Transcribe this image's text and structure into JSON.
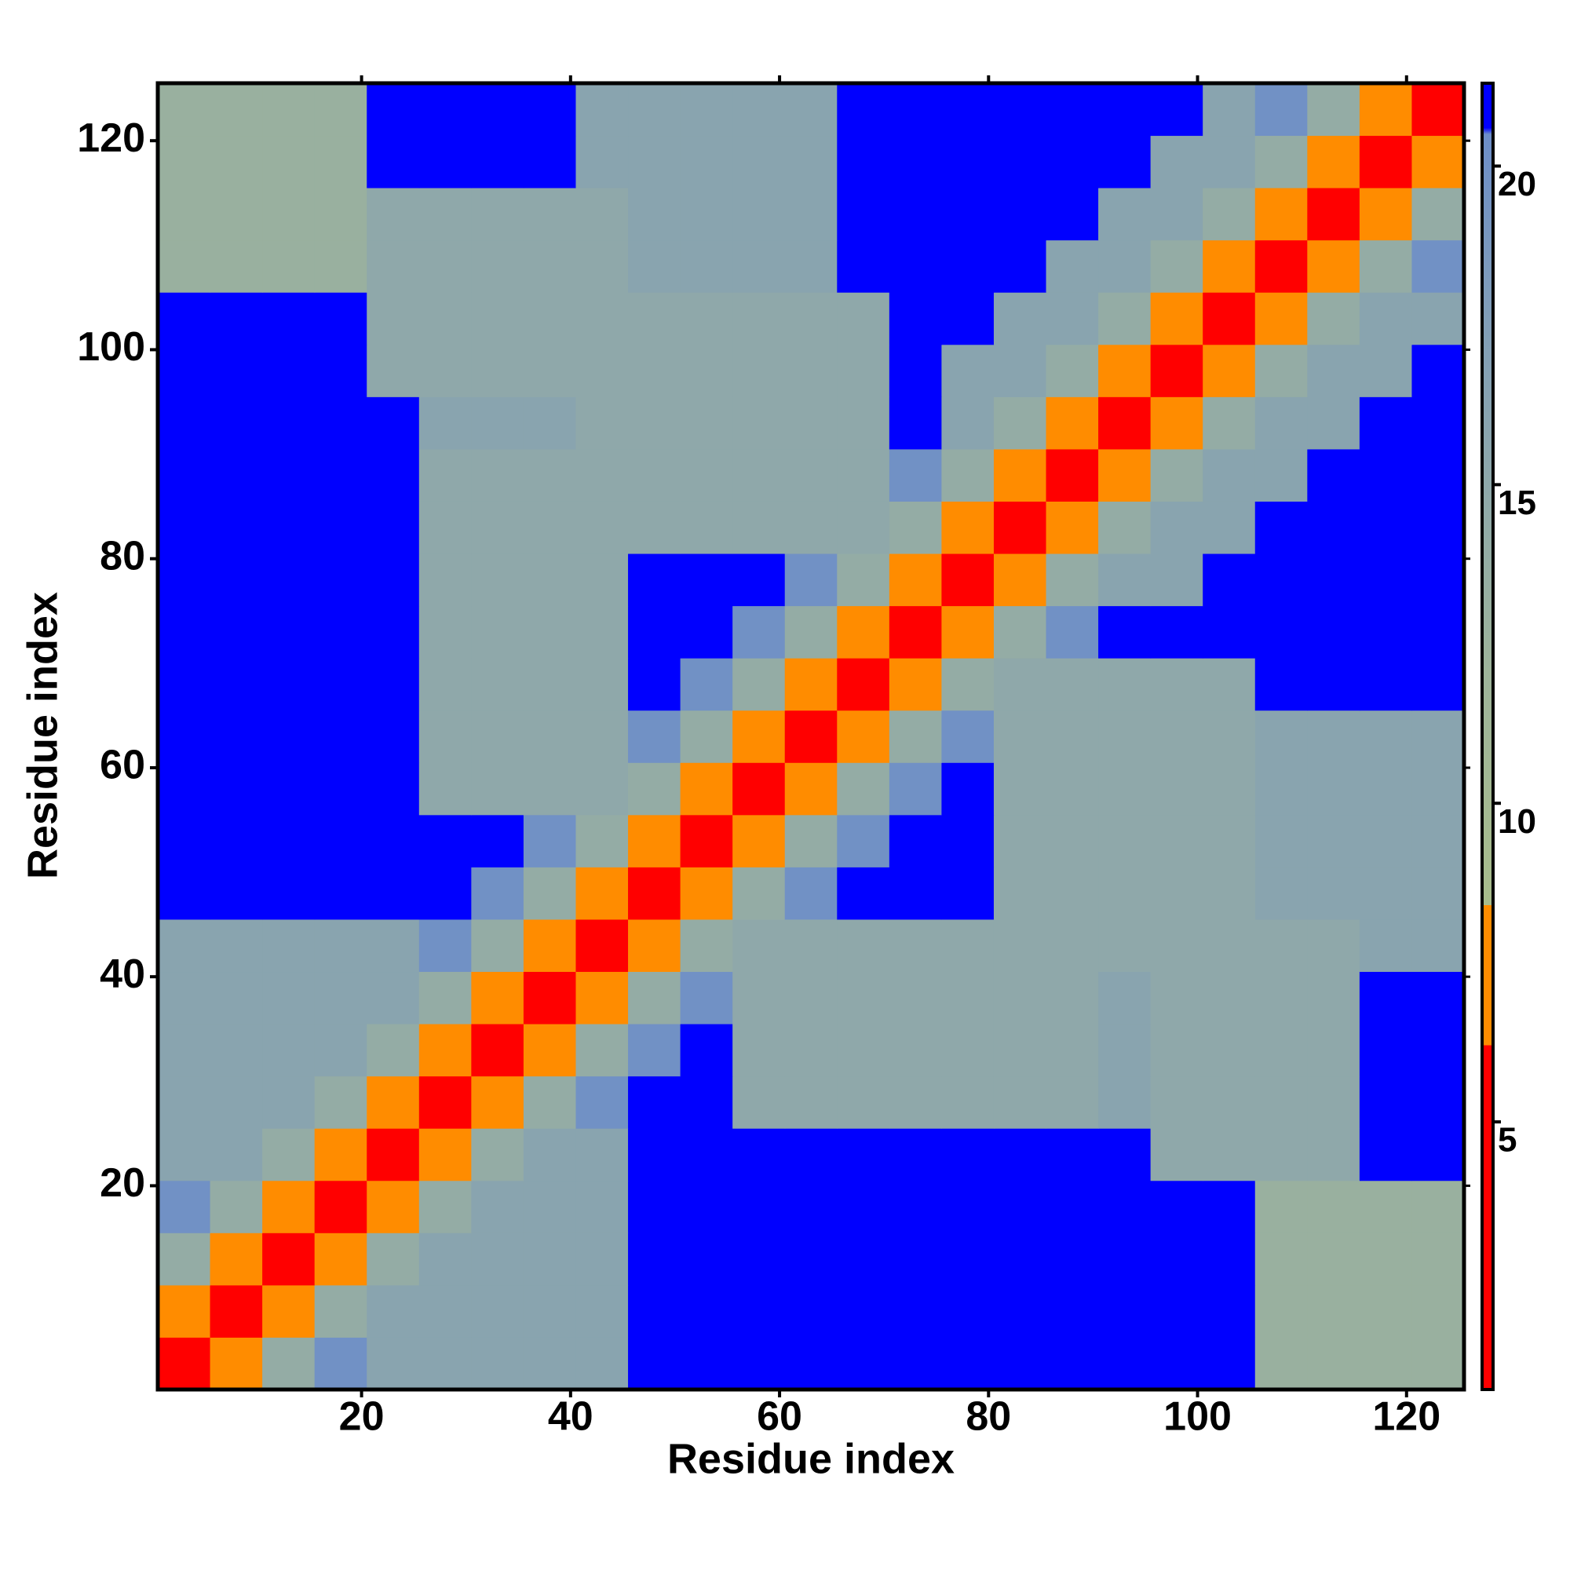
{
  "chart_data": {
    "type": "heatmap",
    "xlabel": "Residue index",
    "ylabel": "Residue index",
    "xlim": [
      0.5,
      125.5
    ],
    "ylim": [
      0.5,
      125.5
    ],
    "xticks": [
      20,
      40,
      60,
      80,
      100,
      120
    ],
    "yticks": [
      20,
      40,
      60,
      80,
      100,
      120
    ],
    "x_bins": [
      0.5,
      5.5,
      10.5,
      15.5,
      20.5,
      25.5,
      30.5,
      35.5,
      40.5,
      45.5,
      50.5,
      55.5,
      60.5,
      65.5,
      70.5,
      75.5,
      80.5,
      85.5,
      90.5,
      95.5,
      100.5,
      105.5,
      110.5,
      115.5,
      120.5,
      125.5
    ],
    "y_bins": [
      0.5,
      5.5,
      10.5,
      15.5,
      20.5,
      25.5,
      30.5,
      35.5,
      40.5,
      45.5,
      50.5,
      55.5,
      60.5,
      65.5,
      70.5,
      75.5,
      80.5,
      85.5,
      90.5,
      95.5,
      100.5,
      105.5,
      110.5,
      115.5,
      120.5,
      125.5
    ],
    "values": [
      [
        3,
        8,
        14,
        20,
        16,
        16,
        16,
        16,
        16,
        22,
        22,
        22,
        22,
        22,
        22,
        22,
        22,
        22,
        22,
        22,
        22,
        13,
        13,
        13,
        13
      ],
      [
        8,
        3,
        8,
        14,
        16,
        16,
        16,
        16,
        16,
        22,
        22,
        22,
        22,
        22,
        22,
        22,
        22,
        22,
        22,
        22,
        22,
        13,
        13,
        13,
        13
      ],
      [
        14,
        8,
        3,
        8,
        14,
        16,
        16,
        16,
        16,
        22,
        22,
        22,
        22,
        22,
        22,
        22,
        22,
        22,
        22,
        22,
        22,
        13,
        13,
        13,
        13
      ],
      [
        20,
        14,
        8,
        3,
        8,
        14,
        16,
        16,
        16,
        22,
        22,
        22,
        22,
        22,
        22,
        22,
        22,
        22,
        22,
        22,
        22,
        13,
        13,
        13,
        13
      ],
      [
        16,
        16,
        14,
        8,
        3,
        8,
        14,
        16,
        16,
        22,
        22,
        22,
        22,
        22,
        22,
        22,
        22,
        22,
        22,
        15,
        15,
        15,
        15,
        22,
        22
      ],
      [
        16,
        16,
        16,
        14,
        8,
        3,
        8,
        14,
        20,
        22,
        22,
        15,
        15,
        15,
        15,
        15,
        15,
        15,
        16,
        15,
        15,
        15,
        15,
        22,
        22
      ],
      [
        16,
        16,
        16,
        16,
        14,
        8,
        3,
        8,
        14,
        20,
        22,
        15,
        15,
        15,
        15,
        15,
        15,
        15,
        16,
        15,
        15,
        15,
        15,
        22,
        22
      ],
      [
        16,
        16,
        16,
        16,
        16,
        14,
        8,
        3,
        8,
        14,
        20,
        15,
        15,
        15,
        15,
        15,
        15,
        15,
        16,
        15,
        15,
        15,
        15,
        22,
        22
      ],
      [
        16,
        16,
        16,
        16,
        16,
        20,
        14,
        8,
        3,
        8,
        14,
        15,
        15,
        15,
        15,
        15,
        15,
        15,
        15,
        15,
        15,
        15,
        15,
        16,
        16
      ],
      [
        22,
        22,
        22,
        22,
        22,
        22,
        20,
        14,
        8,
        3,
        8,
        14,
        20,
        22,
        22,
        22,
        15,
        15,
        15,
        15,
        15,
        16,
        16,
        16,
        16
      ],
      [
        22,
        22,
        22,
        22,
        22,
        22,
        22,
        20,
        14,
        8,
        3,
        8,
        14,
        20,
        22,
        22,
        15,
        15,
        15,
        15,
        15,
        16,
        16,
        16,
        16
      ],
      [
        22,
        22,
        22,
        22,
        22,
        15,
        15,
        15,
        15,
        14,
        8,
        3,
        8,
        14,
        20,
        22,
        15,
        15,
        15,
        15,
        15,
        16,
        16,
        16,
        16
      ],
      [
        22,
        22,
        22,
        22,
        22,
        15,
        15,
        15,
        15,
        20,
        14,
        8,
        3,
        8,
        14,
        20,
        15,
        15,
        15,
        15,
        15,
        16,
        16,
        16,
        16
      ],
      [
        22,
        22,
        22,
        22,
        22,
        15,
        15,
        15,
        15,
        22,
        20,
        14,
        8,
        3,
        8,
        14,
        15,
        15,
        15,
        15,
        15,
        22,
        22,
        22,
        22
      ],
      [
        22,
        22,
        22,
        22,
        22,
        15,
        15,
        15,
        15,
        22,
        22,
        20,
        14,
        8,
        3,
        8,
        14,
        20,
        22,
        22,
        22,
        22,
        22,
        22,
        22
      ],
      [
        22,
        22,
        22,
        22,
        22,
        15,
        15,
        15,
        15,
        22,
        22,
        22,
        20,
        14,
        8,
        3,
        8,
        14,
        16,
        16,
        22,
        22,
        22,
        22,
        22
      ],
      [
        22,
        22,
        22,
        22,
        22,
        15,
        15,
        15,
        15,
        15,
        15,
        15,
        15,
        15,
        14,
        8,
        3,
        8,
        14,
        16,
        16,
        22,
        22,
        22,
        22
      ],
      [
        22,
        22,
        22,
        22,
        22,
        15,
        15,
        15,
        15,
        15,
        15,
        15,
        15,
        15,
        20,
        14,
        8,
        3,
        8,
        14,
        16,
        16,
        22,
        22,
        22
      ],
      [
        22,
        22,
        22,
        22,
        22,
        16,
        16,
        16,
        15,
        15,
        15,
        15,
        15,
        15,
        22,
        16,
        14,
        8,
        3,
        8,
        14,
        16,
        16,
        22,
        22
      ],
      [
        22,
        22,
        22,
        22,
        15,
        15,
        15,
        15,
        15,
        15,
        15,
        15,
        15,
        15,
        22,
        16,
        16,
        14,
        8,
        3,
        8,
        14,
        16,
        16,
        22
      ],
      [
        22,
        22,
        22,
        22,
        15,
        15,
        15,
        15,
        15,
        15,
        15,
        15,
        15,
        15,
        22,
        22,
        16,
        16,
        14,
        8,
        3,
        8,
        14,
        16,
        16
      ],
      [
        13,
        13,
        13,
        13,
        15,
        15,
        15,
        15,
        15,
        16,
        16,
        16,
        16,
        22,
        22,
        22,
        22,
        16,
        16,
        14,
        8,
        3,
        8,
        14,
        20
      ],
      [
        13,
        13,
        13,
        13,
        15,
        15,
        15,
        15,
        15,
        16,
        16,
        16,
        16,
        22,
        22,
        22,
        22,
        22,
        16,
        16,
        14,
        8,
        3,
        8,
        14
      ],
      [
        13,
        13,
        13,
        13,
        22,
        22,
        22,
        22,
        16,
        16,
        16,
        16,
        16,
        22,
        22,
        22,
        22,
        22,
        22,
        16,
        16,
        14,
        8,
        3,
        8
      ],
      [
        13,
        13,
        13,
        13,
        22,
        22,
        22,
        22,
        16,
        16,
        16,
        16,
        16,
        22,
        22,
        22,
        22,
        22,
        22,
        22,
        16,
        20,
        14,
        8,
        3
      ]
    ],
    "zlim": [
      0.8,
      21.3
    ],
    "zticks": [
      5,
      10,
      15,
      20
    ],
    "colorscale": [
      [
        0.8,
        "#ff0000"
      ],
      [
        6.2,
        "#ff0000"
      ],
      [
        6.2,
        "#ff8c00"
      ],
      [
        8.4,
        "#ff8c00"
      ],
      [
        8.4,
        "#a8bc8c"
      ],
      [
        12,
        "#9eb49a"
      ],
      [
        18,
        "#7f9cba"
      ],
      [
        20.5,
        "#6d8ec8"
      ],
      [
        20.6,
        "#0000ff"
      ],
      [
        21.3,
        "#0000ff"
      ]
    ]
  }
}
